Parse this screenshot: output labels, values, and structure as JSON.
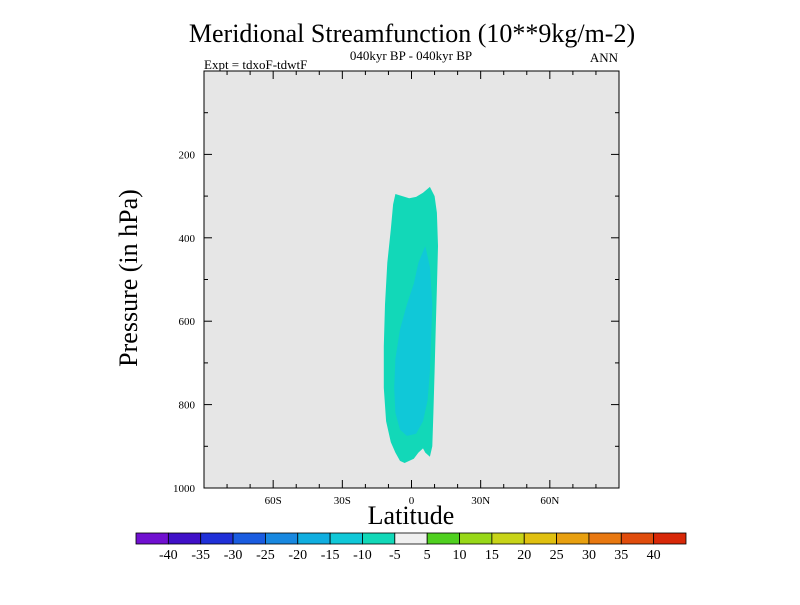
{
  "chart_data": {
    "type": "contour",
    "title": "Meridional Streamfunction (10**9kg/m-2)",
    "subtitle_left": "Expt = tdxoF-tdwtF",
    "subtitle_center": "040kyr BP - 040kyr BP",
    "subtitle_right": "ANN",
    "xlabel": "Latitude",
    "ylabel": "Pressure (in hPa)",
    "xlim": [
      -90,
      90
    ],
    "ylim": [
      0,
      1000
    ],
    "y_reversed": true,
    "x_ticks": [
      {
        "value": -60,
        "label": "60S"
      },
      {
        "value": -30,
        "label": "30S"
      },
      {
        "value": 0,
        "label": "0"
      },
      {
        "value": 30,
        "label": "30N"
      },
      {
        "value": 60,
        "label": "60N"
      }
    ],
    "y_ticks": [
      {
        "value": 200,
        "label": "200"
      },
      {
        "value": 400,
        "label": "400"
      },
      {
        "value": 600,
        "label": "600"
      },
      {
        "value": 800,
        "label": "800"
      },
      {
        "value": 1000,
        "label": "1000"
      }
    ],
    "background_color": "#e6e6e6",
    "colorbar": {
      "levels": [
        "-40",
        "-35",
        "-30",
        "-25",
        "-20",
        "-15",
        "-10",
        "-5",
        "5",
        "10",
        "15",
        "20",
        "25",
        "30",
        "35",
        "40"
      ],
      "colors": [
        "#7010d0",
        "#4010c8",
        "#2030d8",
        "#1a5ce0",
        "#1888e0",
        "#10aee0",
        "#10c8d8",
        "#12d8b8",
        "#f0f0f0",
        "#50d020",
        "#98d818",
        "#c8d418",
        "#e0c010",
        "#e8a010",
        "#e87810",
        "#e04c0c",
        "#d82808"
      ]
    },
    "contours": [
      {
        "level": "-10 to -5",
        "color": "#12d8b8",
        "polygon": [
          [
            -7,
            295
          ],
          [
            -4,
            300
          ],
          [
            -1,
            305
          ],
          [
            2,
            302
          ],
          [
            5,
            292
          ],
          [
            8,
            278
          ],
          [
            10,
            300
          ],
          [
            11,
            340
          ],
          [
            11.5,
            420
          ],
          [
            11,
            520
          ],
          [
            10.5,
            620
          ],
          [
            10,
            720
          ],
          [
            9.5,
            820
          ],
          [
            9,
            900
          ],
          [
            8,
            925
          ],
          [
            6,
            915
          ],
          [
            5,
            905
          ],
          [
            3,
            915
          ],
          [
            1,
            930
          ],
          [
            -3,
            940
          ],
          [
            -5,
            935
          ],
          [
            -7,
            915
          ],
          [
            -9,
            890
          ],
          [
            -11,
            840
          ],
          [
            -12,
            760
          ],
          [
            -12,
            660
          ],
          [
            -11.5,
            560
          ],
          [
            -10.5,
            460
          ],
          [
            -9,
            380
          ],
          [
            -8,
            320
          ]
        ]
      },
      {
        "level": "-15 to -10",
        "color": "#10c8d8",
        "polygon": [
          [
            6,
            420
          ],
          [
            8,
            470
          ],
          [
            9,
            560
          ],
          [
            8.5,
            640
          ],
          [
            8,
            720
          ],
          [
            7,
            790
          ],
          [
            5,
            840
          ],
          [
            2,
            870
          ],
          [
            -2,
            875
          ],
          [
            -5,
            860
          ],
          [
            -7,
            820
          ],
          [
            -7.5,
            760
          ],
          [
            -7,
            690
          ],
          [
            -5,
            620
          ],
          [
            -2,
            560
          ],
          [
            1,
            510
          ],
          [
            3,
            460
          ]
        ]
      }
    ]
  }
}
